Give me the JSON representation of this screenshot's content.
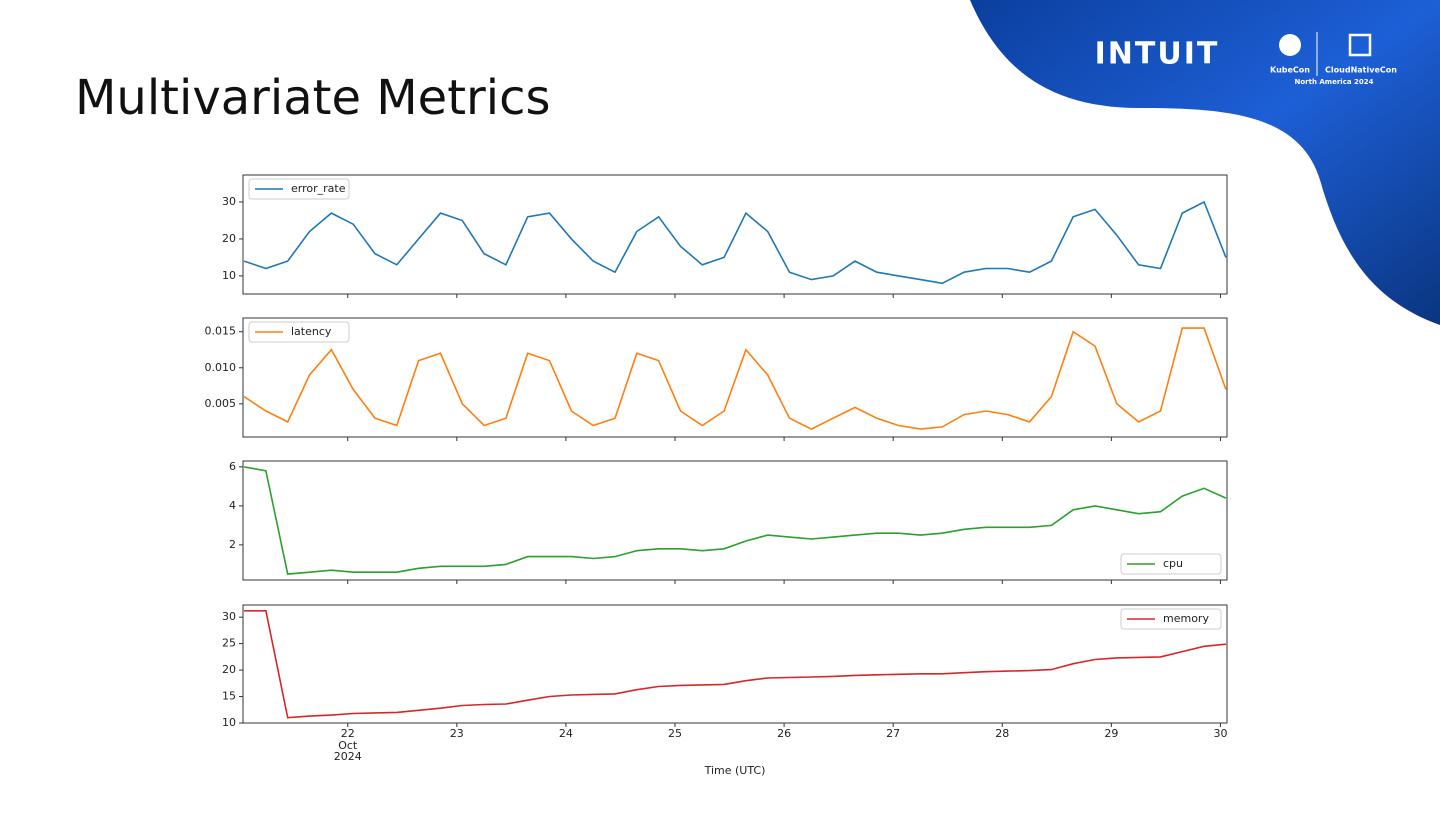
{
  "slide": {
    "title": "Multivariate Metrics",
    "brand": "INTUIT",
    "event_left": "KubeCon",
    "event_right": "CloudNativeCon",
    "event_sub": "North America 2024"
  },
  "chart_data": [
    {
      "type": "line",
      "legend": "upper left",
      "x": [
        21.05,
        21.25,
        21.45,
        21.65,
        21.85,
        22.05,
        22.25,
        22.45,
        22.65,
        22.85,
        23.05,
        23.25,
        23.45,
        23.65,
        23.85,
        24.05,
        24.25,
        24.45,
        24.65,
        24.85,
        25.05,
        25.25,
        25.45,
        25.65,
        25.85,
        26.05,
        26.25,
        26.45,
        26.65,
        26.85,
        27.05,
        27.25,
        27.45,
        27.65,
        27.85,
        28.05,
        28.25,
        28.45,
        28.65,
        28.85,
        29.05,
        29.25,
        29.45,
        29.65,
        29.85,
        30.05
      ],
      "series": [
        {
          "name": "error_rate",
          "color": "#1f77b4",
          "values": [
            14,
            12,
            14,
            22,
            27,
            24,
            16,
            13,
            20,
            27,
            25,
            16,
            13,
            26,
            27,
            20,
            14,
            11,
            22,
            26,
            18,
            13,
            15,
            27,
            22,
            11,
            9,
            10,
            14,
            11,
            10,
            9,
            8,
            11,
            12,
            12,
            11,
            14,
            26,
            28,
            21,
            13,
            12,
            27,
            30,
            15
          ]
        }
      ],
      "xlim": [
        21.04,
        30.06
      ],
      "xticks": [
        22,
        23,
        24,
        25,
        26,
        27,
        28,
        29,
        30
      ],
      "ylim": [
        5.1,
        37.3
      ],
      "yticks": [
        10,
        20,
        30
      ]
    },
    {
      "type": "line",
      "legend": "upper left",
      "x": [
        21.05,
        21.25,
        21.45,
        21.65,
        21.85,
        22.05,
        22.25,
        22.45,
        22.65,
        22.85,
        23.05,
        23.25,
        23.45,
        23.65,
        23.85,
        24.05,
        24.25,
        24.45,
        24.65,
        24.85,
        25.05,
        25.25,
        25.45,
        25.65,
        25.85,
        26.05,
        26.25,
        26.45,
        26.65,
        26.85,
        27.05,
        27.25,
        27.45,
        27.65,
        27.85,
        28.05,
        28.25,
        28.45,
        28.65,
        28.85,
        29.05,
        29.25,
        29.45,
        29.65,
        29.85,
        30.05
      ],
      "series": [
        {
          "name": "latency",
          "color": "#ff7f0e",
          "values": [
            0.006,
            0.004,
            0.0025,
            0.009,
            0.0125,
            0.007,
            0.003,
            0.002,
            0.011,
            0.012,
            0.005,
            0.002,
            0.003,
            0.012,
            0.011,
            0.004,
            0.002,
            0.003,
            0.012,
            0.011,
            0.004,
            0.002,
            0.004,
            0.0125,
            0.009,
            0.003,
            0.0015,
            0.003,
            0.0045,
            0.003,
            0.002,
            0.0015,
            0.0018,
            0.0035,
            0.004,
            0.0035,
            0.0025,
            0.006,
            0.015,
            0.013,
            0.005,
            0.0025,
            0.004,
            0.0155,
            0.0155,
            0.007
          ]
        }
      ],
      "xlim": [
        21.04,
        30.06
      ],
      "xticks": [
        22,
        23,
        24,
        25,
        26,
        27,
        28,
        29,
        30
      ],
      "ylim": [
        0.0004,
        0.0169
      ],
      "yticks": [
        0.005,
        {
          "value": 0.01,
          "label": "0.010"
        },
        0.015
      ]
    },
    {
      "type": "line",
      "legend": "lower right",
      "x": [
        21.05,
        21.25,
        21.45,
        21.65,
        21.85,
        22.05,
        22.25,
        22.45,
        22.65,
        22.85,
        23.05,
        23.25,
        23.45,
        23.65,
        23.85,
        24.05,
        24.25,
        24.45,
        24.65,
        24.85,
        25.05,
        25.25,
        25.45,
        25.65,
        25.85,
        26.05,
        26.25,
        26.45,
        26.65,
        26.85,
        27.05,
        27.25,
        27.45,
        27.65,
        27.85,
        28.05,
        28.25,
        28.45,
        28.65,
        28.85,
        29.05,
        29.25,
        29.45,
        29.65,
        29.85,
        30.05
      ],
      "series": [
        {
          "name": "cpu",
          "color": "#2ca02c",
          "values": [
            6.0,
            5.8,
            0.5,
            0.6,
            0.7,
            0.6,
            0.6,
            0.6,
            0.8,
            0.9,
            0.9,
            0.9,
            1.0,
            1.4,
            1.4,
            1.4,
            1.3,
            1.4,
            1.7,
            1.8,
            1.8,
            1.7,
            1.8,
            2.2,
            2.5,
            2.4,
            2.3,
            2.4,
            2.5,
            2.6,
            2.6,
            2.5,
            2.6,
            2.8,
            2.9,
            2.9,
            2.9,
            3.0,
            3.8,
            4.0,
            3.8,
            3.6,
            3.7,
            4.5,
            4.9,
            4.4
          ]
        }
      ],
      "xlim": [
        21.04,
        30.06
      ],
      "xticks": [
        22,
        23,
        24,
        25,
        26,
        27,
        28,
        29,
        30
      ],
      "ylim": [
        0.2,
        6.3
      ],
      "yticks": [
        2,
        4,
        6
      ]
    },
    {
      "type": "line",
      "legend": "upper right",
      "xlabel": "Time (UTC)",
      "xtick_sublabels": [
        "Oct",
        "2024"
      ],
      "x": [
        21.05,
        21.25,
        21.45,
        21.65,
        21.85,
        22.05,
        22.25,
        22.45,
        22.65,
        22.85,
        23.05,
        23.25,
        23.45,
        23.65,
        23.85,
        24.05,
        24.25,
        24.45,
        24.65,
        24.85,
        25.05,
        25.25,
        25.45,
        25.65,
        25.85,
        26.05,
        26.25,
        26.45,
        26.65,
        26.85,
        27.05,
        27.25,
        27.45,
        27.65,
        27.85,
        28.05,
        28.25,
        28.45,
        28.65,
        28.85,
        29.05,
        29.25,
        29.45,
        29.65,
        29.85,
        30.05
      ],
      "series": [
        {
          "name": "memory",
          "color": "#d62728",
          "values": [
            31.2,
            31.2,
            11,
            11.3,
            11.5,
            11.8,
            11.9,
            12,
            12.4,
            12.8,
            13.3,
            13.5,
            13.6,
            14.3,
            15,
            15.3,
            15.4,
            15.5,
            16.3,
            16.9,
            17.1,
            17.2,
            17.3,
            18,
            18.5,
            18.6,
            18.7,
            18.8,
            19,
            19.1,
            19.2,
            19.3,
            19.3,
            19.5,
            19.7,
            19.8,
            19.9,
            20.1,
            21.2,
            22,
            22.3,
            22.4,
            22.5,
            23.5,
            24.5,
            24.9
          ]
        }
      ],
      "xlim": [
        21.04,
        30.06
      ],
      "xticks": [
        22,
        23,
        24,
        25,
        26,
        27,
        28,
        29,
        30
      ],
      "ylim": [
        10,
        32.3
      ],
      "yticks": [
        10,
        15,
        20,
        25,
        30
      ]
    }
  ]
}
